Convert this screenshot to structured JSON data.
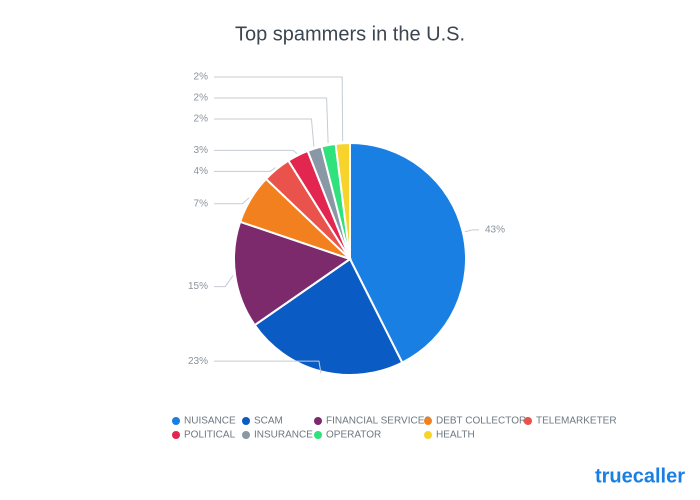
{
  "chart_data": {
    "type": "pie",
    "title": "Top spammers in the U.S.",
    "categories": [
      "NUISANCE",
      "SCAM",
      "FINANCIAL SERVICES",
      "DEBT COLLECTOR",
      "TELEMARKETER",
      "POLITICAL",
      "INSURANCE",
      "OPERATOR",
      "HEALTH"
    ],
    "values": [
      43,
      23,
      15,
      7,
      4,
      3,
      2,
      2,
      2
    ],
    "value_labels": [
      "43%",
      "23%",
      "15%",
      "7%",
      "4%",
      "3%",
      "2%",
      "2%",
      "2%"
    ],
    "colors": [
      "#1a7fe3",
      "#0a5bc4",
      "#7d2a6c",
      "#f2801f",
      "#ea534b",
      "#e2264f",
      "#8a97a4",
      "#2fe27b",
      "#f7d42c"
    ],
    "legend": "bottom"
  },
  "logo": "truecaller"
}
